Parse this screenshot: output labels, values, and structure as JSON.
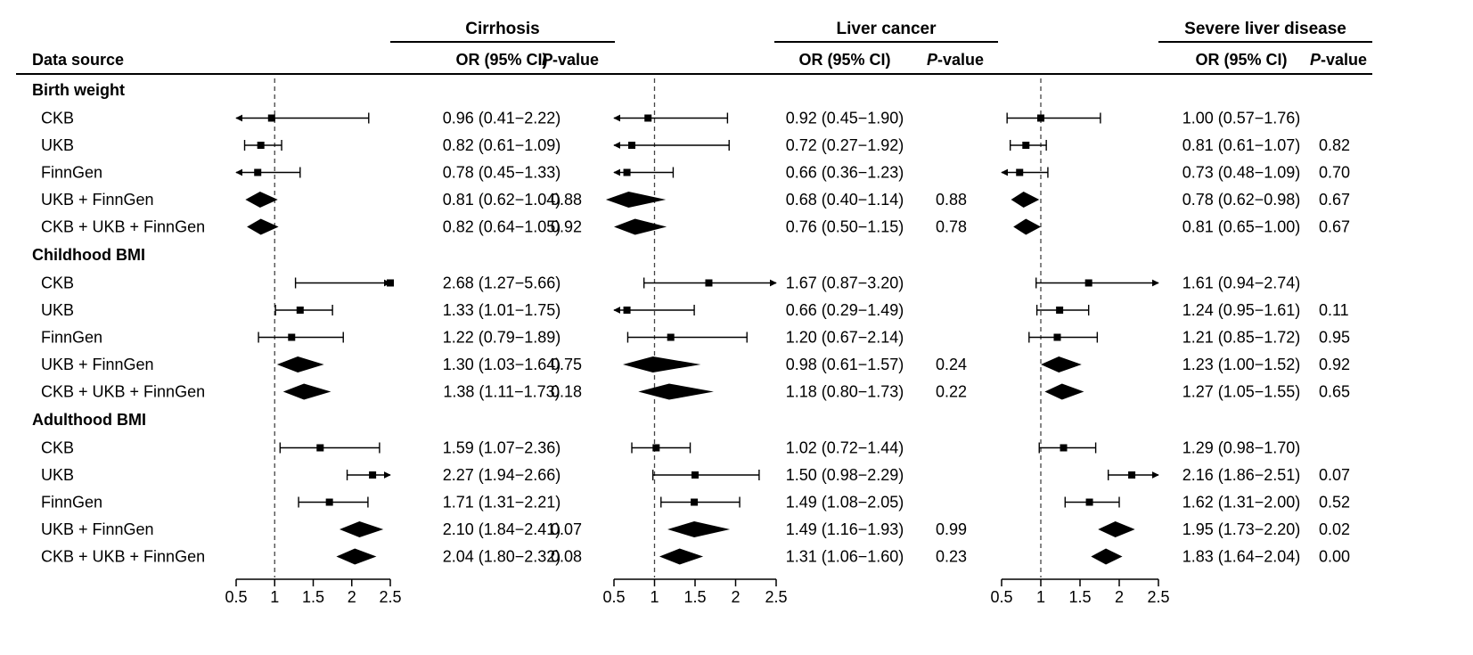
{
  "chart_data": {
    "type": "forest",
    "header": {
      "data_source_label": "Data source",
      "or_label": "OR (95% CI)",
      "p_prefix": "P",
      "p_suffix": "-value"
    },
    "panels": [
      {
        "title": "Cirrhosis",
        "xlim": [
          0.5,
          2.5
        ],
        "reference": 1,
        "ticks": [
          "0.5",
          "1",
          "1.5",
          "2",
          "2.5"
        ],
        "groups": [
          {
            "name": "Birth weight",
            "rows": [
              {
                "label": "CKB",
                "or": 0.96,
                "lo": 0.41,
                "hi": 2.22,
                "text": "0.96 (0.41−2.22)",
                "p": "",
                "kind": "box"
              },
              {
                "label": "UKB",
                "or": 0.82,
                "lo": 0.61,
                "hi": 1.09,
                "text": "0.82 (0.61−1.09)",
                "p": "",
                "kind": "box"
              },
              {
                "label": "FinnGen",
                "or": 0.78,
                "lo": 0.45,
                "hi": 1.33,
                "text": "0.78 (0.45−1.33)",
                "p": "",
                "kind": "box"
              },
              {
                "label": "UKB + FinnGen",
                "or": 0.81,
                "lo": 0.62,
                "hi": 1.04,
                "text": "0.81 (0.62−1.04)",
                "p": "0.88",
                "kind": "diamond"
              },
              {
                "label": "CKB + UKB + FinnGen",
                "or": 0.82,
                "lo": 0.64,
                "hi": 1.05,
                "text": "0.82 (0.64−1.05)",
                "p": "0.92",
                "kind": "diamond"
              }
            ]
          },
          {
            "name": "Childhood BMI",
            "rows": [
              {
                "label": "CKB",
                "or": 2.68,
                "lo": 1.27,
                "hi": 5.66,
                "text": "2.68 (1.27−5.66)",
                "p": "",
                "kind": "box"
              },
              {
                "label": "UKB",
                "or": 1.33,
                "lo": 1.01,
                "hi": 1.75,
                "text": "1.33 (1.01−1.75)",
                "p": "",
                "kind": "box"
              },
              {
                "label": "FinnGen",
                "or": 1.22,
                "lo": 0.79,
                "hi": 1.89,
                "text": "1.22 (0.79−1.89)",
                "p": "",
                "kind": "box"
              },
              {
                "label": "UKB + FinnGen",
                "or": 1.3,
                "lo": 1.03,
                "hi": 1.64,
                "text": "1.30 (1.03−1.64)",
                "p": "0.75",
                "kind": "diamond"
              },
              {
                "label": "CKB + UKB + FinnGen",
                "or": 1.38,
                "lo": 1.11,
                "hi": 1.73,
                "text": "1.38 (1.11−1.73)",
                "p": "0.18",
                "kind": "diamond"
              }
            ]
          },
          {
            "name": "Adulthood BMI",
            "rows": [
              {
                "label": "CKB",
                "or": 1.59,
                "lo": 1.07,
                "hi": 2.36,
                "text": "1.59 (1.07−2.36)",
                "p": "",
                "kind": "box"
              },
              {
                "label": "UKB",
                "or": 2.27,
                "lo": 1.94,
                "hi": 2.66,
                "text": "2.27 (1.94−2.66)",
                "p": "",
                "kind": "box"
              },
              {
                "label": "FinnGen",
                "or": 1.71,
                "lo": 1.31,
                "hi": 2.21,
                "text": "1.71 (1.31−2.21)",
                "p": "",
                "kind": "box"
              },
              {
                "label": "UKB + FinnGen",
                "or": 2.1,
                "lo": 1.84,
                "hi": 2.41,
                "text": "2.10 (1.84−2.41)",
                "p": "0.07",
                "kind": "diamond"
              },
              {
                "label": "CKB + UKB + FinnGen",
                "or": 2.04,
                "lo": 1.8,
                "hi": 2.32,
                "text": "2.04 (1.80−2.32)",
                "p": "0.08",
                "kind": "diamond"
              }
            ]
          }
        ]
      },
      {
        "title": "Liver cancer",
        "xlim": [
          0.5,
          2.5
        ],
        "reference": 1,
        "ticks": [
          "0.5",
          "1",
          "1.5",
          "2",
          "2.5"
        ],
        "groups": [
          {
            "name": "Birth weight",
            "rows": [
              {
                "label": "CKB",
                "or": 0.92,
                "lo": 0.45,
                "hi": 1.9,
                "text": "0.92 (0.45−1.90)",
                "p": "",
                "kind": "box"
              },
              {
                "label": "UKB",
                "or": 0.72,
                "lo": 0.27,
                "hi": 1.92,
                "text": "0.72 (0.27−1.92)",
                "p": "",
                "kind": "box"
              },
              {
                "label": "FinnGen",
                "or": 0.66,
                "lo": 0.36,
                "hi": 1.23,
                "text": "0.66 (0.36−1.23)",
                "p": "",
                "kind": "box"
              },
              {
                "label": "UKB + FinnGen",
                "or": 0.68,
                "lo": 0.4,
                "hi": 1.14,
                "text": "0.68 (0.40−1.14)",
                "p": "0.88",
                "kind": "diamond"
              },
              {
                "label": "CKB + UKB + FinnGen",
                "or": 0.76,
                "lo": 0.5,
                "hi": 1.15,
                "text": "0.76 (0.50−1.15)",
                "p": "0.78",
                "kind": "diamond"
              }
            ]
          },
          {
            "name": "Childhood BMI",
            "rows": [
              {
                "label": "CKB",
                "or": 1.67,
                "lo": 0.87,
                "hi": 3.2,
                "text": "1.67 (0.87−3.20)",
                "p": "",
                "kind": "box"
              },
              {
                "label": "UKB",
                "or": 0.66,
                "lo": 0.29,
                "hi": 1.49,
                "text": "0.66 (0.29−1.49)",
                "p": "",
                "kind": "box"
              },
              {
                "label": "FinnGen",
                "or": 1.2,
                "lo": 0.67,
                "hi": 2.14,
                "text": "1.20 (0.67−2.14)",
                "p": "",
                "kind": "box"
              },
              {
                "label": "UKB + FinnGen",
                "or": 0.98,
                "lo": 0.61,
                "hi": 1.57,
                "text": "0.98 (0.61−1.57)",
                "p": "0.24",
                "kind": "diamond"
              },
              {
                "label": "CKB + UKB + FinnGen",
                "or": 1.18,
                "lo": 0.8,
                "hi": 1.73,
                "text": "1.18 (0.80−1.73)",
                "p": "0.22",
                "kind": "diamond"
              }
            ]
          },
          {
            "name": "Adulthood BMI",
            "rows": [
              {
                "label": "CKB",
                "or": 1.02,
                "lo": 0.72,
                "hi": 1.44,
                "text": "1.02 (0.72−1.44)",
                "p": "",
                "kind": "box"
              },
              {
                "label": "UKB",
                "or": 1.5,
                "lo": 0.98,
                "hi": 2.29,
                "text": "1.50 (0.98−2.29)",
                "p": "",
                "kind": "box"
              },
              {
                "label": "FinnGen",
                "or": 1.49,
                "lo": 1.08,
                "hi": 2.05,
                "text": "1.49 (1.08−2.05)",
                "p": "",
                "kind": "box"
              },
              {
                "label": "UKB + FinnGen",
                "or": 1.49,
                "lo": 1.16,
                "hi": 1.93,
                "text": "1.49 (1.16−1.93)",
                "p": "0.99",
                "kind": "diamond"
              },
              {
                "label": "CKB + UKB + FinnGen",
                "or": 1.31,
                "lo": 1.06,
                "hi": 1.6,
                "text": "1.31 (1.06−1.60)",
                "p": "0.23",
                "kind": "diamond"
              }
            ]
          }
        ]
      },
      {
        "title": "Severe liver disease",
        "xlim": [
          0.5,
          2.5
        ],
        "reference": 1,
        "ticks": [
          "0.5",
          "1",
          "1.5",
          "2",
          "2.5"
        ],
        "groups": [
          {
            "name": "Birth weight",
            "rows": [
              {
                "label": "CKB",
                "or": 1.0,
                "lo": 0.57,
                "hi": 1.76,
                "text": "1.00 (0.57−1.76)",
                "p": "",
                "kind": "box"
              },
              {
                "label": "UKB",
                "or": 0.81,
                "lo": 0.61,
                "hi": 1.07,
                "text": "0.81 (0.61−1.07)",
                "p": "0.82",
                "kind": "box"
              },
              {
                "label": "FinnGen",
                "or": 0.73,
                "lo": 0.48,
                "hi": 1.09,
                "text": "0.73 (0.48−1.09)",
                "p": "0.70",
                "kind": "box"
              },
              {
                "label": "UKB + FinnGen",
                "or": 0.78,
                "lo": 0.62,
                "hi": 0.98,
                "text": "0.78 (0.62−0.98)",
                "p": "0.67",
                "kind": "diamond"
              },
              {
                "label": "CKB + UKB + FinnGen",
                "or": 0.81,
                "lo": 0.65,
                "hi": 1.0,
                "text": "0.81 (0.65−1.00)",
                "p": "0.67",
                "kind": "diamond"
              }
            ]
          },
          {
            "name": "Childhood BMI",
            "rows": [
              {
                "label": "CKB",
                "or": 1.61,
                "lo": 0.94,
                "hi": 2.74,
                "text": "1.61 (0.94−2.74)",
                "p": "",
                "kind": "box"
              },
              {
                "label": "UKB",
                "or": 1.24,
                "lo": 0.95,
                "hi": 1.61,
                "text": "1.24 (0.95−1.61)",
                "p": "0.11",
                "kind": "box"
              },
              {
                "label": "FinnGen",
                "or": 1.21,
                "lo": 0.85,
                "hi": 1.72,
                "text": "1.21 (0.85−1.72)",
                "p": "0.95",
                "kind": "box"
              },
              {
                "label": "UKB + FinnGen",
                "or": 1.23,
                "lo": 1.0,
                "hi": 1.52,
                "text": "1.23 (1.00−1.52)",
                "p": "0.92",
                "kind": "diamond"
              },
              {
                "label": "CKB + UKB + FinnGen",
                "or": 1.27,
                "lo": 1.05,
                "hi": 1.55,
                "text": "1.27 (1.05−1.55)",
                "p": "0.65",
                "kind": "diamond"
              }
            ]
          },
          {
            "name": "Adulthood BMI",
            "rows": [
              {
                "label": "CKB",
                "or": 1.29,
                "lo": 0.98,
                "hi": 1.7,
                "text": "1.29 (0.98−1.70)",
                "p": "",
                "kind": "box"
              },
              {
                "label": "UKB",
                "or": 2.16,
                "lo": 1.86,
                "hi": 2.51,
                "text": "2.16 (1.86−2.51)",
                "p": "0.07",
                "kind": "box"
              },
              {
                "label": "FinnGen",
                "or": 1.62,
                "lo": 1.31,
                "hi": 2.0,
                "text": "1.62 (1.31−2.00)",
                "p": "0.52",
                "kind": "box"
              },
              {
                "label": "UKB + FinnGen",
                "or": 1.95,
                "lo": 1.73,
                "hi": 2.2,
                "text": "1.95 (1.73−2.20)",
                "p": "0.02",
                "kind": "diamond"
              },
              {
                "label": "CKB + UKB + FinnGen",
                "or": 1.83,
                "lo": 1.64,
                "hi": 2.04,
                "text": "1.83 (1.64−2.04)",
                "p": "0.00",
                "kind": "diamond"
              }
            ]
          }
        ]
      }
    ]
  }
}
